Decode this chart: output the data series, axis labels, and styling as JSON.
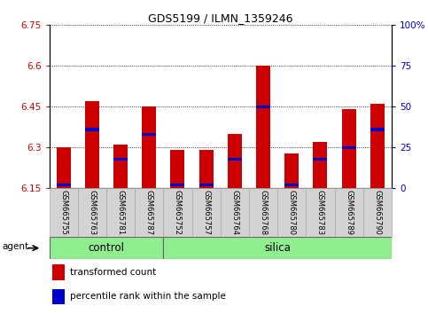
{
  "title": "GDS5199 / ILMN_1359246",
  "samples": [
    "GSM665755",
    "GSM665763",
    "GSM665781",
    "GSM665787",
    "GSM665752",
    "GSM665757",
    "GSM665764",
    "GSM665768",
    "GSM665780",
    "GSM665783",
    "GSM665789",
    "GSM665790"
  ],
  "groups": [
    "control",
    "control",
    "control",
    "control",
    "silica",
    "silica",
    "silica",
    "silica",
    "silica",
    "silica",
    "silica",
    "silica"
  ],
  "transformed_count": [
    6.3,
    6.47,
    6.31,
    6.45,
    6.29,
    6.29,
    6.35,
    6.6,
    6.28,
    6.32,
    6.44,
    6.46
  ],
  "percentile_rank": [
    2,
    36,
    18,
    33,
    2,
    2,
    18,
    50,
    2,
    18,
    25,
    36
  ],
  "y_min": 6.15,
  "y_max": 6.75,
  "y_ticks": [
    6.15,
    6.3,
    6.45,
    6.6,
    6.75
  ],
  "y_tick_labels": [
    "6.15",
    "6.3",
    "6.45",
    "6.6",
    "6.75"
  ],
  "right_y_ticks": [
    0,
    25,
    50,
    75,
    100
  ],
  "right_y_tick_labels": [
    "0",
    "25",
    "50",
    "75",
    "100%"
  ],
  "bar_color": "#cc0000",
  "percentile_color": "#0000cc",
  "group_color": "#90ee90",
  "label_bg_color": "#d3d3d3",
  "bar_width": 0.5,
  "control_count": 4,
  "control_label": "control",
  "silica_label": "silica",
  "agent_label": "agent",
  "legend_transformed": "transformed count",
  "legend_percentile": "percentile rank within the sample"
}
